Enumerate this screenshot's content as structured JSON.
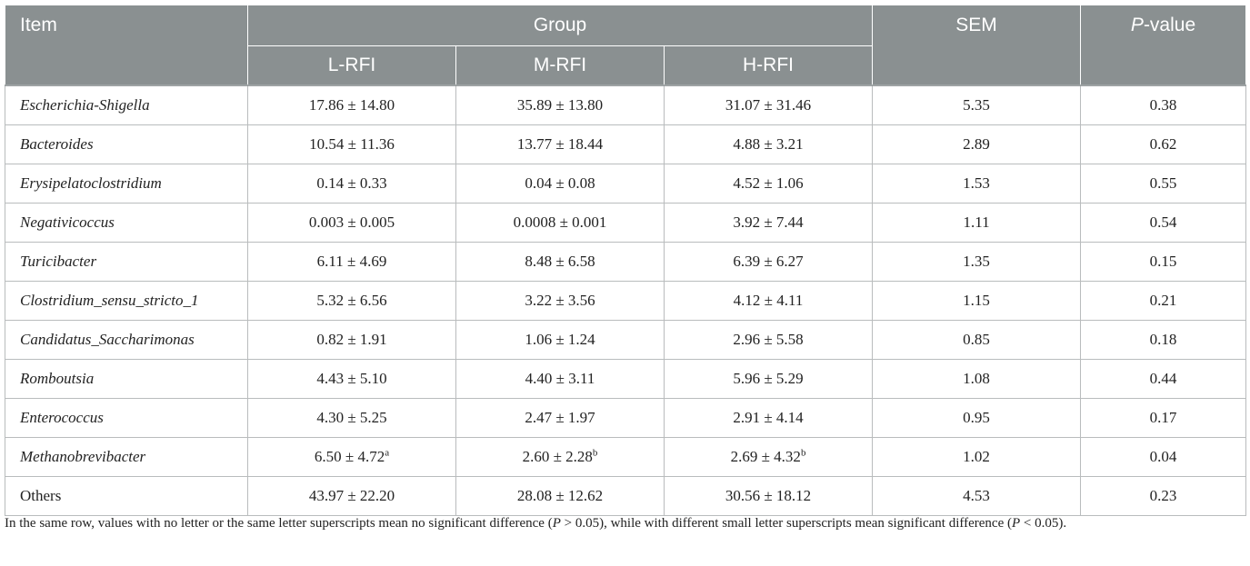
{
  "header": {
    "item": "Item",
    "group": "Group",
    "sem": "SEM",
    "p_italic": "P",
    "p_rest": "-value",
    "subgroups": [
      "L-RFI",
      "M-RFI",
      "H-RFI"
    ]
  },
  "rows": [
    {
      "item": "Escherichia-Shigella",
      "l": "17.86 ± 14.80",
      "l_sup": "",
      "m": "35.89 ± 13.80",
      "m_sup": "",
      "h": "31.07 ± 31.46",
      "h_sup": "",
      "sem": "5.35",
      "p": "0.38"
    },
    {
      "item": "Bacteroides",
      "l": "10.54 ± 11.36",
      "l_sup": "",
      "m": "13.77 ± 18.44",
      "m_sup": "",
      "h": "4.88 ± 3.21",
      "h_sup": "",
      "sem": "2.89",
      "p": "0.62"
    },
    {
      "item": "Erysipelatoclostridium",
      "l": "0.14 ± 0.33",
      "l_sup": "",
      "m": "0.04 ± 0.08",
      "m_sup": "",
      "h": "4.52 ± 1.06",
      "h_sup": "",
      "sem": "1.53",
      "p": "0.55"
    },
    {
      "item": "Negativicoccus",
      "l": "0.003 ± 0.005",
      "l_sup": "",
      "m": "0.0008 ± 0.001",
      "m_sup": "",
      "h": "3.92 ± 7.44",
      "h_sup": "",
      "sem": "1.11",
      "p": "0.54"
    },
    {
      "item": "Turicibacter",
      "l": "6.11 ± 4.69",
      "l_sup": "",
      "m": "8.48 ± 6.58",
      "m_sup": "",
      "h": "6.39 ± 6.27",
      "h_sup": "",
      "sem": "1.35",
      "p": "0.15"
    },
    {
      "item": "Clostridium_sensu_stricto_1",
      "l": "5.32 ± 6.56",
      "l_sup": "",
      "m": "3.22 ± 3.56",
      "m_sup": "",
      "h": "4.12 ± 4.11",
      "h_sup": "",
      "sem": "1.15",
      "p": "0.21"
    },
    {
      "item": "Candidatus_Saccharimonas",
      "l": "0.82 ± 1.91",
      "l_sup": "",
      "m": "1.06 ± 1.24",
      "m_sup": "",
      "h": "2.96 ± 5.58",
      "h_sup": "",
      "sem": "0.85",
      "p": "0.18"
    },
    {
      "item": "Romboutsia",
      "l": "4.43 ± 5.10",
      "l_sup": "",
      "m": "4.40 ± 3.11",
      "m_sup": "",
      "h": "5.96 ± 5.29",
      "h_sup": "",
      "sem": "1.08",
      "p": "0.44"
    },
    {
      "item": "Enterococcus",
      "l": "4.30 ± 5.25",
      "l_sup": "",
      "m": "2.47 ± 1.97",
      "m_sup": "",
      "h": "2.91 ± 4.14",
      "h_sup": "",
      "sem": "0.95",
      "p": "0.17"
    },
    {
      "item": "Methanobrevibacter",
      "l": "6.50 ± 4.72",
      "l_sup": "a",
      "m": "2.60 ± 2.28",
      "m_sup": "b",
      "h": "2.69 ± 4.32",
      "h_sup": "b",
      "sem": "1.02",
      "p": "0.04"
    },
    {
      "item": "Others",
      "l": "43.97 ± 22.20",
      "l_sup": "",
      "m": "28.08 ± 12.62",
      "m_sup": "",
      "h": "30.56 ± 18.12",
      "h_sup": "",
      "sem": "4.53",
      "p": "0.23"
    }
  ],
  "footnote": {
    "part1": "In the same row, values with no letter or the same letter superscripts mean no significant difference (",
    "p1": "P",
    "part2": " > 0.05), while with different small letter superscripts mean significant difference (",
    "p2": "P",
    "part3": " < 0.05)."
  }
}
